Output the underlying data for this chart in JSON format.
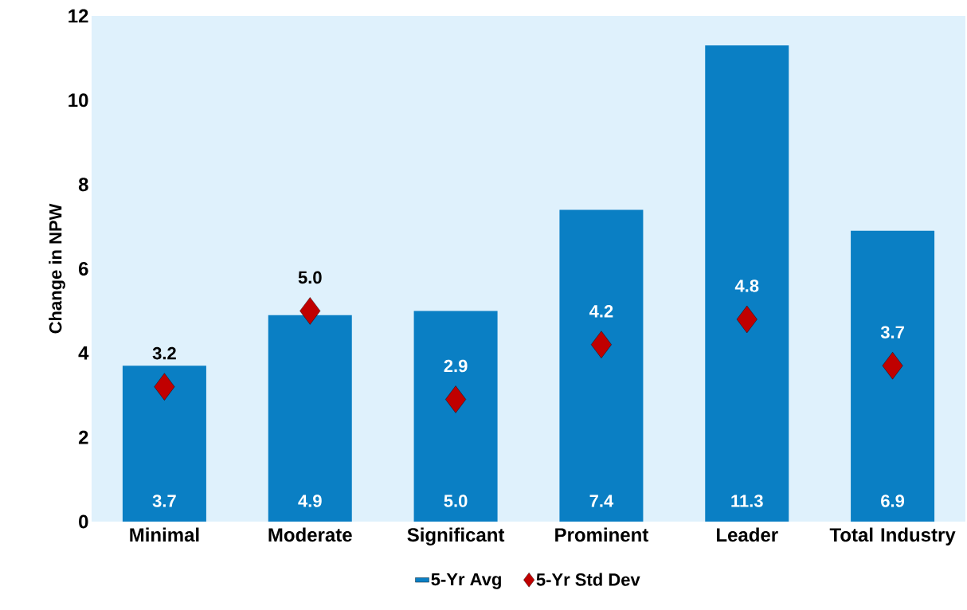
{
  "chart_data": {
    "type": "bar",
    "ylabel": "Change in NPW",
    "categories": [
      "Minimal",
      "Moderate",
      "Significant",
      "Prominent",
      "Leader",
      "Total Industry"
    ],
    "series": [
      {
        "name": "5-Yr Avg",
        "color": "#0a7fc4",
        "values": [
          3.7,
          4.9,
          5.0,
          7.4,
          11.3,
          6.9
        ],
        "value_labels": [
          "3.7",
          "4.9",
          "5.0",
          "7.4",
          "11.3",
          "6.9"
        ]
      },
      {
        "name": "5-Yr Std Dev",
        "type": "scatter",
        "marker": "diamond",
        "color": "#c00000",
        "values": [
          3.2,
          5.0,
          2.9,
          4.2,
          4.8,
          3.7
        ],
        "value_labels": [
          "3.2",
          "5.0",
          "2.9",
          "4.2",
          "4.8",
          "3.7"
        ]
      }
    ],
    "ylim": [
      0,
      12
    ],
    "yticks": [
      0,
      2,
      4,
      6,
      8,
      10,
      12
    ],
    "legend": "bottom"
  }
}
